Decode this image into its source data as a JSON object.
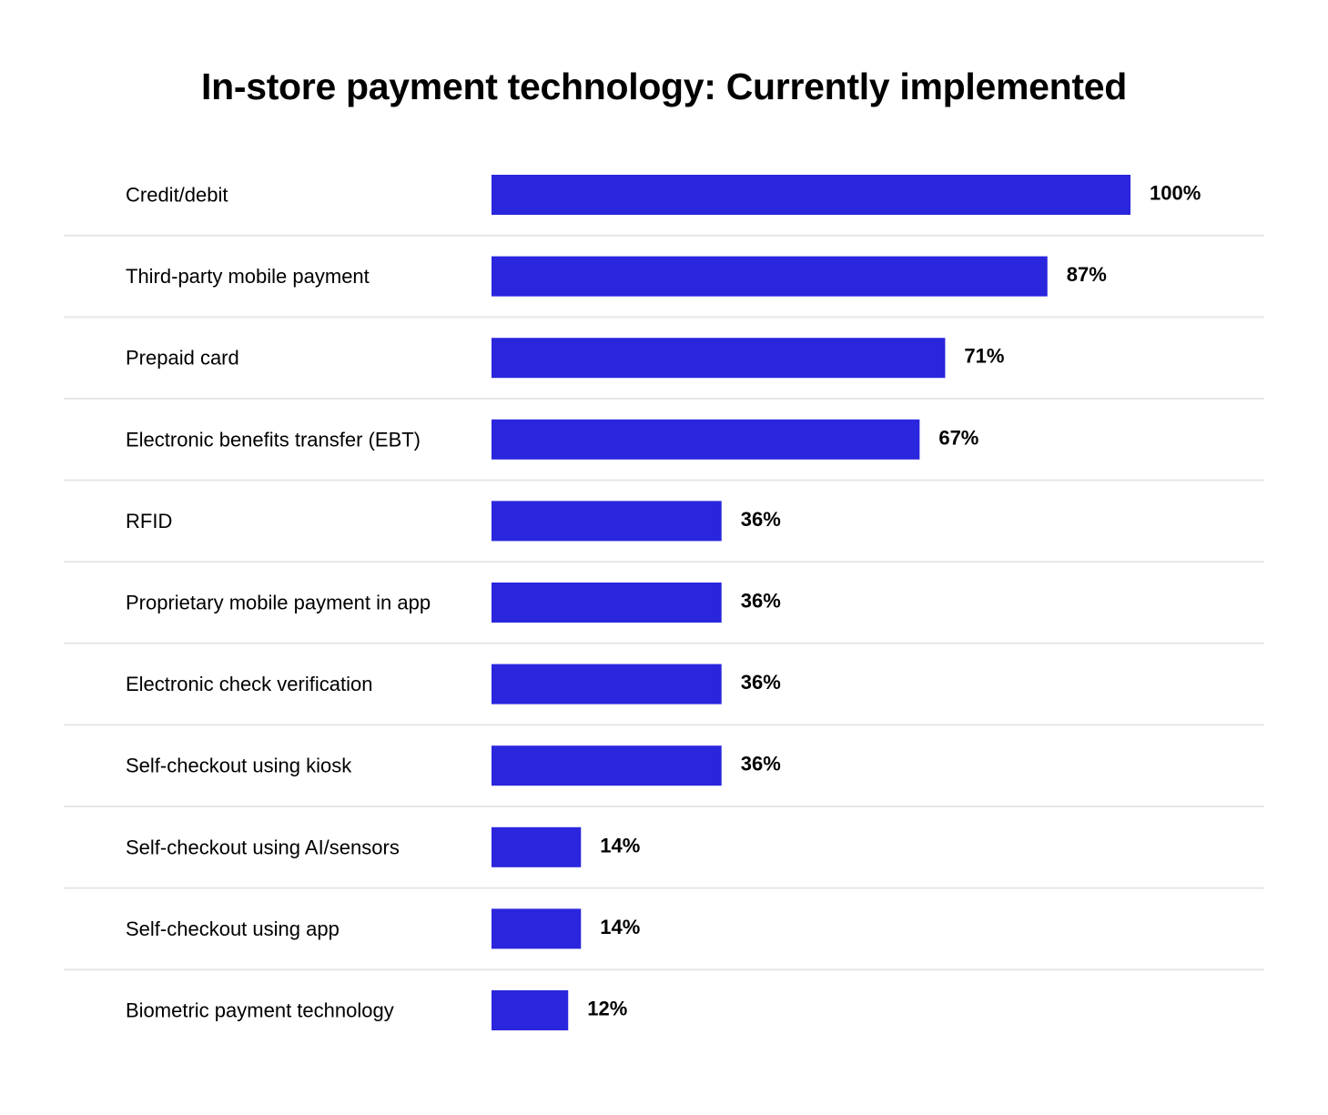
{
  "chart_data": {
    "type": "bar",
    "orientation": "horizontal",
    "title": "In-store payment technology: Currently implemented",
    "categories": [
      "Credit/debit",
      "Third-party mobile payment",
      "Prepaid card",
      "Electronic benefits transfer (EBT)",
      "RFID",
      "Proprietary mobile payment in app",
      "Electronic check verification",
      "Self-checkout using kiosk",
      "Self-checkout using AI/sensors",
      "Self-checkout using app",
      "Biometric payment technology"
    ],
    "values": [
      100,
      87,
      71,
      67,
      36,
      36,
      36,
      36,
      14,
      14,
      12
    ],
    "value_labels": [
      "100%",
      "87%",
      "71%",
      "67%",
      "36%",
      "36%",
      "36%",
      "36%",
      "14%",
      "14%",
      "12%"
    ],
    "xlim": [
      0,
      100
    ],
    "grid": false,
    "legend": "none",
    "colors": {
      "bar": "#2a26dd",
      "separator": "#e6e6e6",
      "text": "#000000"
    }
  }
}
